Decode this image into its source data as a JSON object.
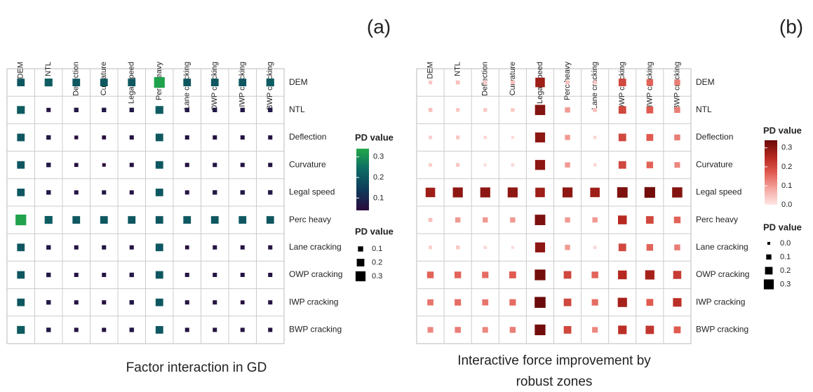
{
  "chart_data": [
    {
      "type": "heatmap",
      "panel_label": "(a)",
      "caption": [
        "Factor interaction in GD"
      ],
      "factors": [
        "DEM",
        "NTL",
        "Deflection",
        "Curvature",
        "Legal speed",
        "Perc heavy",
        "Lane cracking",
        "OWP cracking",
        "IWP cracking",
        "BWP cracking"
      ],
      "values": [
        [
          0.2,
          0.21,
          0.2,
          0.2,
          0.2,
          0.33,
          0.2,
          0.2,
          0.2,
          0.21
        ],
        [
          0.21,
          0.06,
          0.07,
          0.07,
          0.07,
          0.21,
          0.07,
          0.07,
          0.07,
          0.07
        ],
        [
          0.2,
          0.07,
          0.04,
          0.05,
          0.06,
          0.2,
          0.06,
          0.06,
          0.06,
          0.06
        ],
        [
          0.2,
          0.07,
          0.05,
          0.03,
          0.06,
          0.2,
          0.06,
          0.06,
          0.06,
          0.06
        ],
        [
          0.2,
          0.07,
          0.06,
          0.06,
          0.06,
          0.2,
          0.06,
          0.07,
          0.07,
          0.07
        ],
        [
          0.33,
          0.21,
          0.2,
          0.2,
          0.2,
          0.2,
          0.2,
          0.2,
          0.2,
          0.2
        ],
        [
          0.2,
          0.07,
          0.06,
          0.06,
          0.06,
          0.2,
          0.05,
          0.06,
          0.06,
          0.06
        ],
        [
          0.2,
          0.07,
          0.06,
          0.06,
          0.07,
          0.2,
          0.06,
          0.06,
          0.06,
          0.06
        ],
        [
          0.2,
          0.07,
          0.06,
          0.06,
          0.07,
          0.2,
          0.06,
          0.06,
          0.05,
          0.06
        ],
        [
          0.21,
          0.07,
          0.06,
          0.06,
          0.07,
          0.2,
          0.06,
          0.06,
          0.06,
          0.06
        ]
      ],
      "color_legend_title": "PD value",
      "clim": [
        0.04,
        0.34
      ],
      "cticks": [
        0.1,
        0.2,
        0.3
      ],
      "colormap": [
        "#2b0a3d",
        "#0f3a5a",
        "#0d6a64",
        "#22a84a"
      ],
      "size_legend_title": "PD value",
      "size_ticks": [
        0.1,
        0.2,
        0.3
      ]
    },
    {
      "type": "heatmap",
      "panel_label": "(b)",
      "caption": [
        "Interactive force improvement by",
        "robust zones"
      ],
      "factors": [
        "DEM",
        "NTL",
        "Deflection",
        "Curvature",
        "Legal speed",
        "Perc heavy",
        "Lane cracking",
        "OWP cracking",
        "IWP cracking",
        "BWP cracking"
      ],
      "values": [
        [
          0.04,
          0.05,
          0.04,
          0.05,
          0.28,
          0.05,
          0.04,
          0.2,
          0.16,
          0.13
        ],
        [
          0.05,
          0.04,
          0.04,
          0.04,
          0.31,
          0.1,
          0.05,
          0.2,
          0.17,
          0.13
        ],
        [
          0.03,
          0.04,
          0.02,
          0.01,
          0.3,
          0.1,
          0.02,
          0.2,
          0.17,
          0.13
        ],
        [
          0.03,
          0.04,
          0.01,
          0.02,
          0.3,
          0.1,
          0.02,
          0.2,
          0.16,
          0.12
        ],
        [
          0.28,
          0.3,
          0.3,
          0.3,
          0.28,
          0.3,
          0.28,
          0.32,
          0.33,
          0.31
        ],
        [
          0.05,
          0.1,
          0.1,
          0.1,
          0.32,
          0.1,
          0.1,
          0.25,
          0.2,
          0.16
        ],
        [
          0.03,
          0.04,
          0.02,
          0.01,
          0.3,
          0.1,
          0.02,
          0.2,
          0.16,
          0.13
        ],
        [
          0.16,
          0.16,
          0.15,
          0.17,
          0.33,
          0.2,
          0.16,
          0.25,
          0.27,
          0.22
        ],
        [
          0.14,
          0.15,
          0.14,
          0.15,
          0.34,
          0.2,
          0.15,
          0.27,
          0.17,
          0.24
        ],
        [
          0.12,
          0.13,
          0.12,
          0.13,
          0.33,
          0.2,
          0.12,
          0.24,
          0.23,
          0.17
        ]
      ],
      "color_legend_title": "PD value",
      "clim": [
        0,
        0.34
      ],
      "cticks": [
        {
          "value": 0,
          "label": "0.0"
        },
        0.1,
        0.2,
        0.3
      ],
      "colormap": [
        "#fde6e4",
        "#f4a6a0",
        "#e05a50",
        "#b3261e",
        "#6b0a0a"
      ],
      "size_legend_title": "PD value",
      "size_ticks": [
        {
          "value": 0,
          "label": "0.0"
        },
        0.1,
        0.2,
        0.3
      ]
    }
  ]
}
